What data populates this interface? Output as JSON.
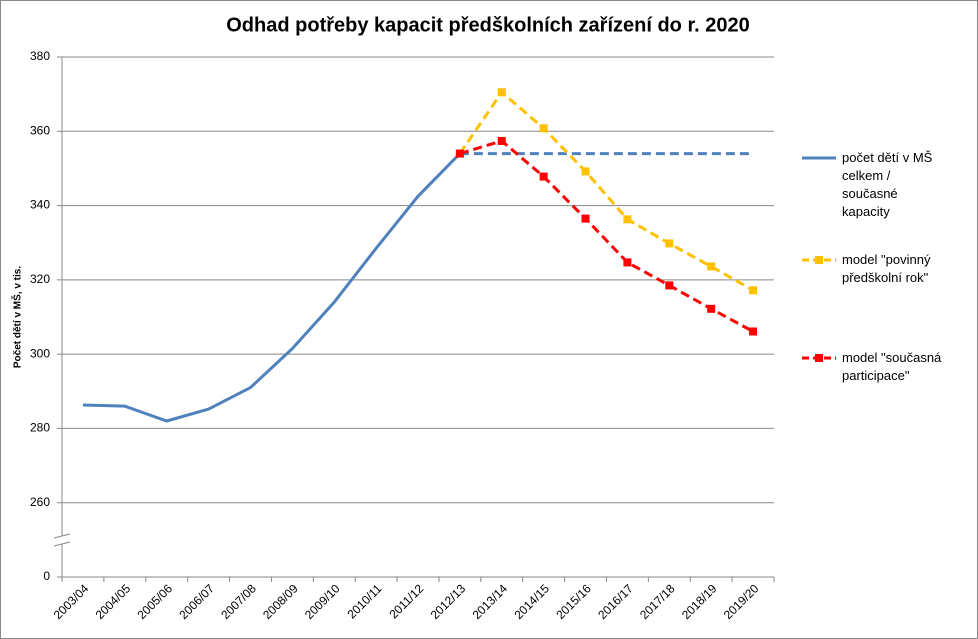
{
  "chart_data": {
    "type": "line",
    "title": "Odhad potřeby kapacit předškolních zařízení do r. 2020",
    "y_label": "Počet dětí v MŠ, v tis.",
    "categories": [
      "2003/04",
      "2004/05",
      "2005/06",
      "2006/07",
      "2007/08",
      "2008/09",
      "2009/10",
      "2010/11",
      "2011/12",
      "2012/13",
      "2013/14",
      "2014/15",
      "2015/16",
      "2016/17",
      "2017/18",
      "2018/19",
      "2019/20"
    ],
    "ylim": [
      240,
      380
    ],
    "yticks": [
      {
        "value": 240,
        "label": "0"
      },
      260,
      280,
      300,
      320,
      340,
      360,
      380
    ],
    "grid": true,
    "legend": "right",
    "series": [
      {
        "name": "počet dětí v MŠ celkem / současné kapacity",
        "color": "#4f81bd",
        "dashed_from_index": 9,
        "values": [
          286.3,
          286,
          282,
          285.2,
          291,
          301.5,
          314,
          328.5,
          342.5,
          354,
          354,
          354,
          354,
          354,
          354,
          354,
          354
        ]
      },
      {
        "name": "model \"povinný předškolní rok\"",
        "color": "#ffc000",
        "dashed": true,
        "markers": true,
        "values": [
          null,
          null,
          null,
          null,
          null,
          null,
          null,
          null,
          null,
          354,
          370.5,
          360.8,
          349.2,
          336.3,
          329.8,
          323.6,
          317.2
        ]
      },
      {
        "name": "model \"současná participace\"",
        "color": "#ff0000",
        "dashed": true,
        "markers": true,
        "values": [
          null,
          null,
          null,
          null,
          null,
          null,
          null,
          null,
          null,
          354,
          357.4,
          347.8,
          336.5,
          324.7,
          318.5,
          312.2,
          306.1
        ]
      }
    ]
  }
}
